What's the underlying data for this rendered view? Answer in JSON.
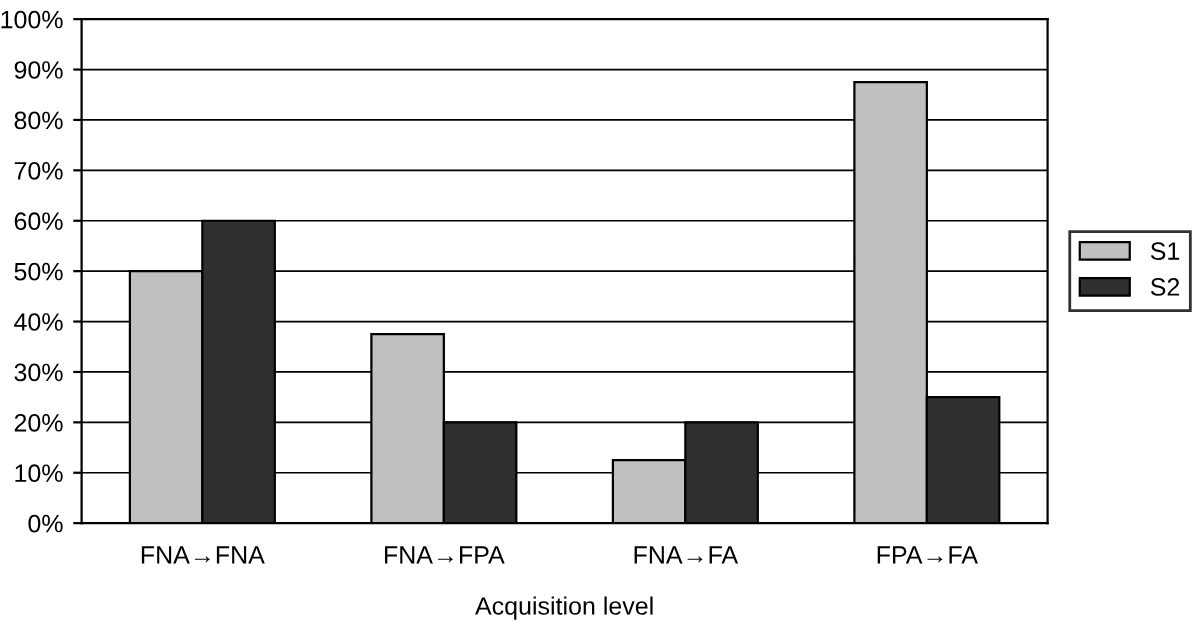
{
  "chart_data": {
    "type": "bar",
    "xlabel": "Acquisition level",
    "categories": [
      "FNA→FNA",
      "FNA→FPA",
      "FNA→FA",
      "FPA→FA"
    ],
    "series": [
      {
        "name": "S1",
        "color": "#c0c0c0",
        "values": [
          50,
          37.5,
          12.5,
          87.5
        ]
      },
      {
        "name": "S2",
        "color": "#303030",
        "values": [
          60,
          20,
          20,
          25
        ]
      }
    ],
    "ylim": [
      0,
      100
    ],
    "yticks": [
      {
        "value": 0,
        "label": "0%"
      },
      {
        "value": 10,
        "label": "10%"
      },
      {
        "value": 20,
        "label": "20%"
      },
      {
        "value": 30,
        "label": "30%"
      },
      {
        "value": 40,
        "label": "40%"
      },
      {
        "value": 50,
        "label": "50%"
      },
      {
        "value": 60,
        "label": "60%"
      },
      {
        "value": 70,
        "label": "70%"
      },
      {
        "value": 80,
        "label": "80%"
      },
      {
        "value": 90,
        "label": "90%"
      },
      {
        "value": 100,
        "label": "100%"
      }
    ],
    "grid": "y",
    "legend": "right"
  }
}
